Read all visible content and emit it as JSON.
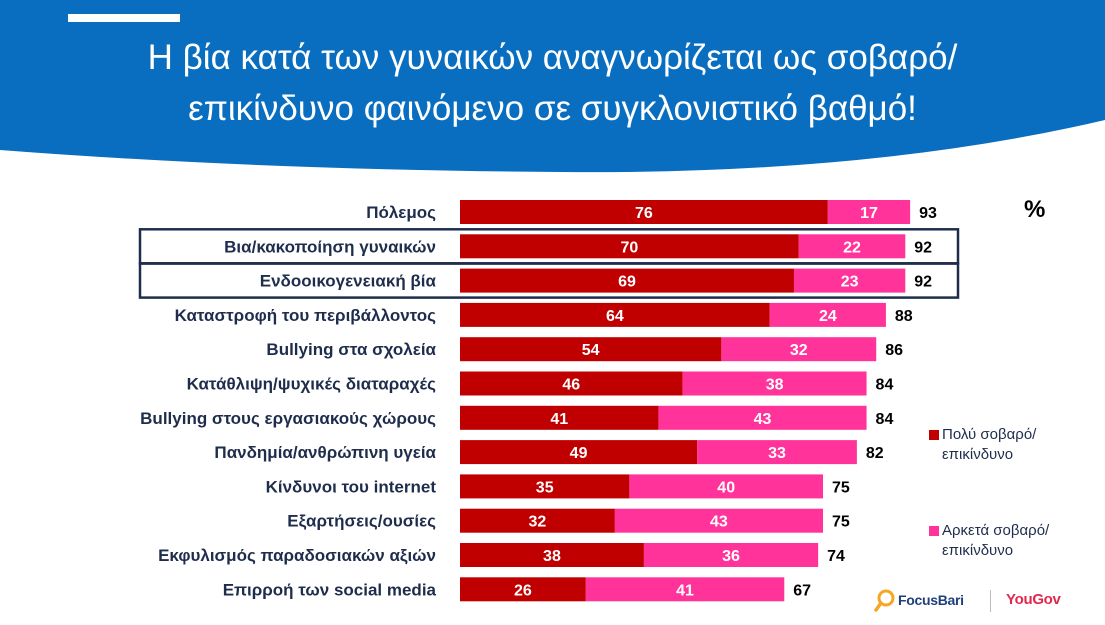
{
  "title": {
    "line1": "Η βία κατά των γυναικών αναγνωρίζεται ως σοβαρό/",
    "line2": "επικίνδυνο φαινόμενο σε συγκλονιστικό βαθμό!"
  },
  "unit_label": "%",
  "colors": {
    "header_blue": "#0a6ec0",
    "very_serious": "#c00000",
    "quite_serious": "#ff3399",
    "highlight_box": "#1f2d4d",
    "label_text": "#1f2d4d"
  },
  "legend": [
    {
      "label": "Πολύ σοβαρό/\nεπικίνδυνο",
      "color": "#c00000"
    },
    {
      "label": "Αρκετά σοβαρό/\nεπικίνδυνο",
      "color": "#ff3399"
    }
  ],
  "logos": {
    "focus": "FocusBari",
    "yougov": "YouGov"
  },
  "chart_data": {
    "type": "bar",
    "orientation": "horizontal",
    "stacked": true,
    "categories": [
      "Πόλεμος",
      "Βια/κακοποίηση γυναικών",
      "Ενδοοικογενειακή βία",
      "Καταστροφή του περιβάλλοντος",
      "Bullying στα σχολεία",
      "Κατάθλιψη/ψυχικές διαταραχές",
      "Bullying στους εργασιακούς χώρους",
      "Πανδημία/ανθρώπινη υγεία",
      "Κίνδυνοι του internet",
      "Εξαρτήσεις/ουσίες",
      "Εκφυλισμός παραδοσιακών αξιών",
      "Επιρροή των social media"
    ],
    "series": [
      {
        "name": "Πολύ σοβαρό/ επικίνδυνο",
        "values": [
          76,
          70,
          69,
          64,
          54,
          46,
          41,
          49,
          35,
          32,
          38,
          26
        ]
      },
      {
        "name": "Αρκετά σοβαρό/ επικίνδυνο",
        "values": [
          17,
          22,
          23,
          24,
          32,
          38,
          43,
          33,
          40,
          43,
          36,
          41
        ]
      }
    ],
    "totals": [
      93,
      92,
      92,
      88,
      86,
      84,
      84,
      82,
      75,
      75,
      74,
      67
    ],
    "highlighted": [
      "Βια/κακοποίηση γυναικών",
      "Ενδοοικογενειακή βία"
    ],
    "legend_position": "right"
  }
}
